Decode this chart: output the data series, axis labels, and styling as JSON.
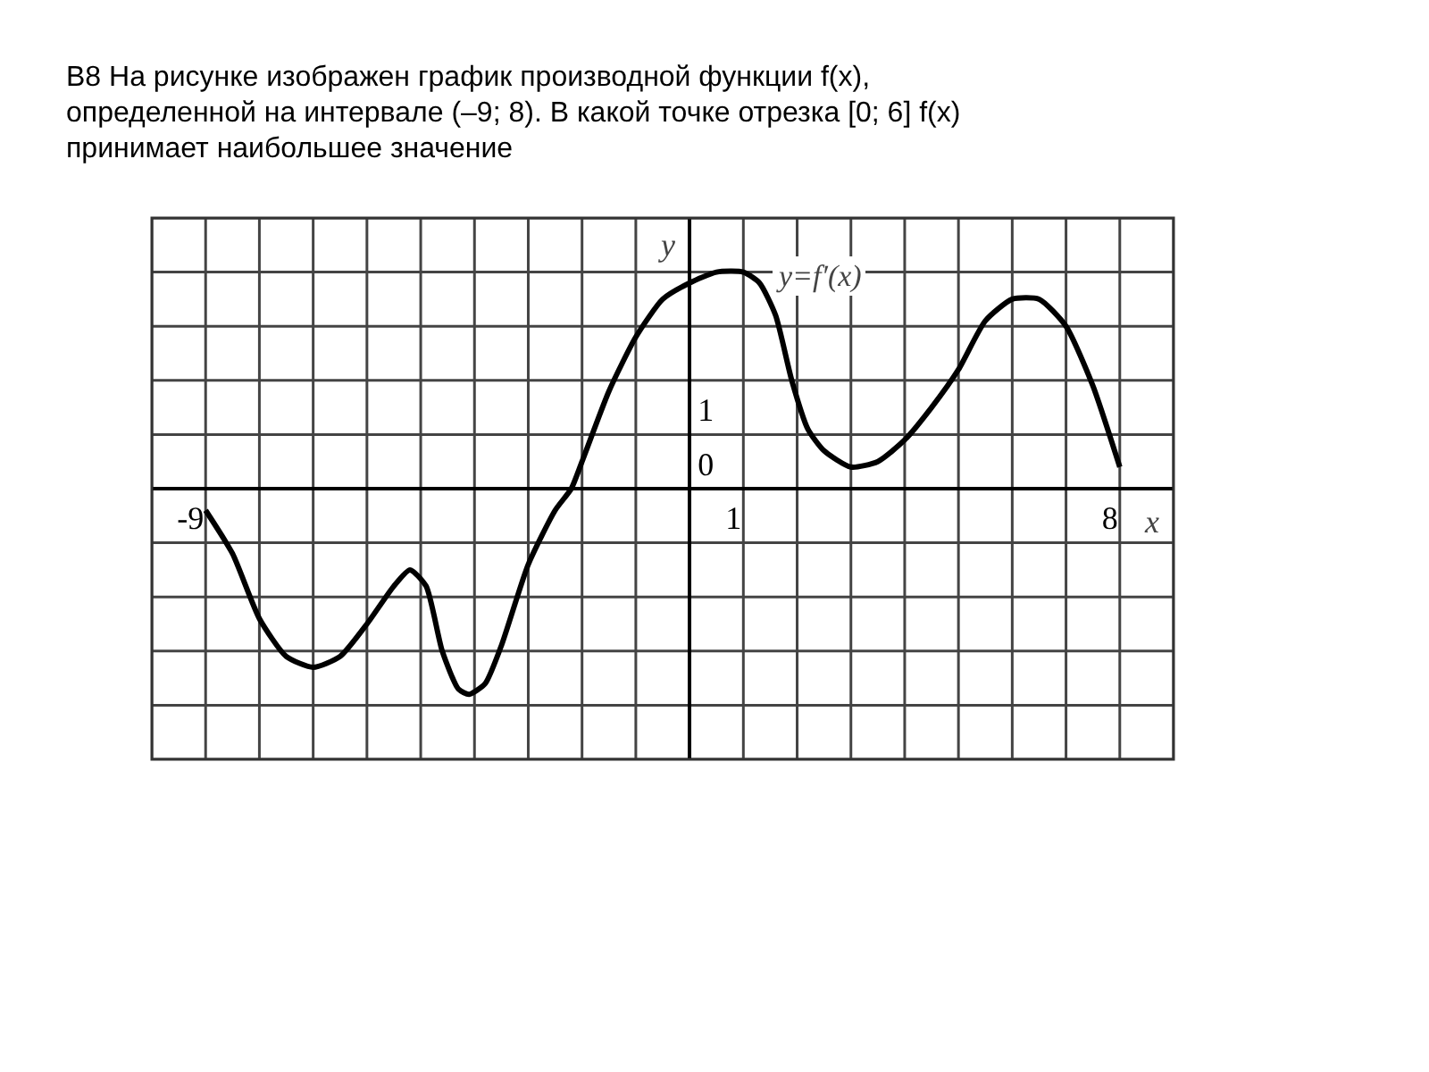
{
  "chart_data": {
    "type": "line",
    "title": "B8 На рисунке изображен график производной функции f(x), определенной на интервале (–9; 8). В какой точке отрезка [0; 6] f(x) принимает наибольшее значение",
    "xlabel": "x",
    "ylabel": "y",
    "annotations": [
      "y=f′(x)"
    ],
    "x": [
      -9,
      -8.5,
      -8,
      -7.5,
      -7,
      -6.5,
      -6,
      -5.5,
      -5.2,
      -4.9,
      -4.6,
      -4.3,
      -4.1,
      -3.8,
      -3.5,
      -3,
      -2.5,
      -2.2,
      -2,
      -1.5,
      -1,
      -0.5,
      0,
      0.5,
      1,
      1.3,
      1.6,
      1.9,
      2.2,
      2.5,
      3,
      3.5,
      4,
      4.5,
      5,
      5.5,
      6,
      6.5,
      7,
      7.5,
      8
    ],
    "series": [
      {
        "color": "#000000",
        "values": [
          -0.4,
          -1.2,
          -2.4,
          -3.1,
          -3.3,
          -3.1,
          -2.5,
          -1.8,
          -1.5,
          -1.8,
          -3.0,
          -3.7,
          -3.8,
          -3.6,
          -2.9,
          -1.4,
          -0.4,
          0,
          0.5,
          1.8,
          2.8,
          3.5,
          3.8,
          4.0,
          4.0,
          3.8,
          3.2,
          2.0,
          1.1,
          0.7,
          0.4,
          0.5,
          0.9,
          1.5,
          2.2,
          3.1,
          3.5,
          3.5,
          3.0,
          1.9,
          0.4
        ]
      }
    ],
    "xlim": [
      -10,
      9
    ],
    "ylim": [
      -5,
      5
    ],
    "xticks": [
      -9,
      1,
      8
    ],
    "yticks": [
      0,
      1
    ],
    "grid": true,
    "line_style": "solid"
  }
}
